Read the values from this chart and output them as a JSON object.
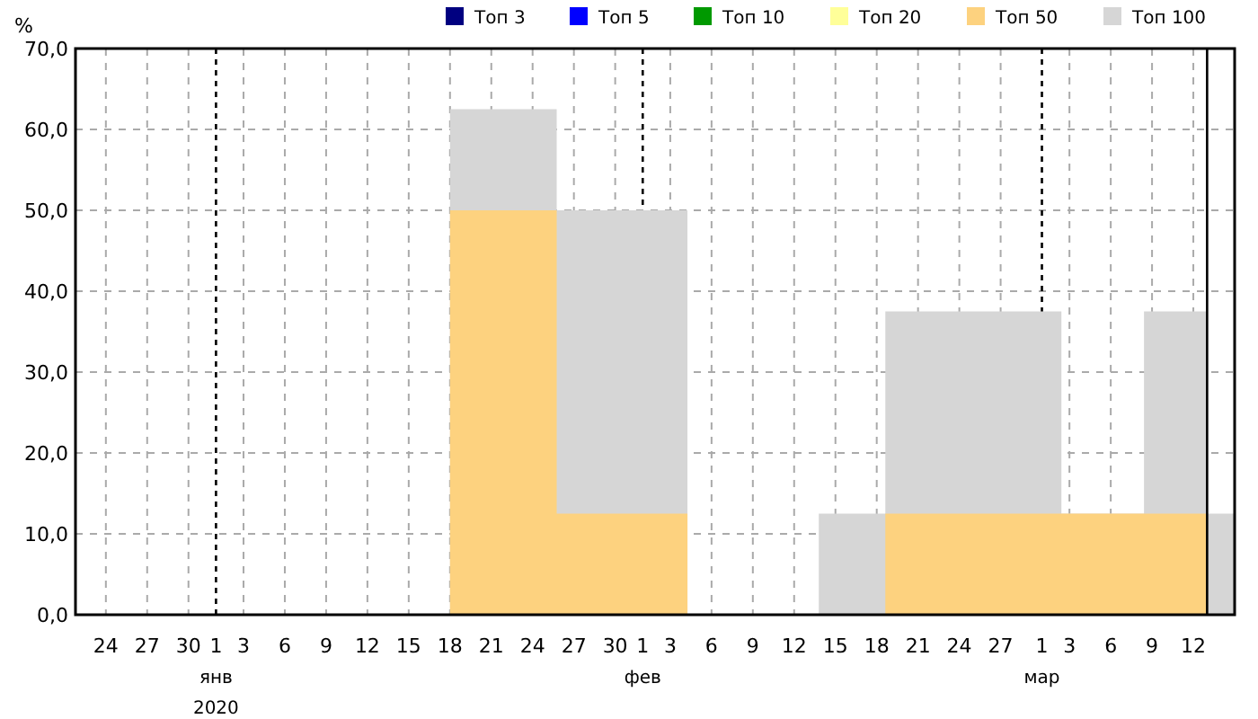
{
  "chart_data": {
    "type": "area",
    "ylabel": "%",
    "legend": "top right",
    "grid": true,
    "x": [
      "2020-01-18",
      "2020-01-25T18:00",
      "2020-02-04T06:00",
      "2020-02-13T19:00",
      "2020-02-18T15:00",
      "2020-03-02T10:00",
      "2020-03-08T10:00",
      "2020-03-13",
      "2020-03-15"
    ],
    "series": [
      {
        "name": "Топ 3",
        "color": "#000080",
        "values": [
          null,
          null,
          null,
          null,
          null,
          null,
          null,
          null,
          null
        ]
      },
      {
        "name": "Топ 5",
        "color": "#0000ff",
        "values": [
          null,
          null,
          null,
          null,
          null,
          null,
          null,
          null,
          null
        ]
      },
      {
        "name": "Топ 10",
        "color": "#009900",
        "values": [
          null,
          null,
          null,
          null,
          null,
          null,
          null,
          null,
          null
        ]
      },
      {
        "name": "Топ 20",
        "color": "#ffff99",
        "values": [
          null,
          null,
          null,
          null,
          null,
          null,
          null,
          null,
          null
        ]
      },
      {
        "name": "Топ 50",
        "color": "#fdd27f",
        "values": [
          50,
          12.5,
          0,
          0,
          12.5,
          12.5,
          12.5,
          0,
          0
        ]
      },
      {
        "name": "Топ 100",
        "color": "#d6d6d6",
        "values": [
          62.5,
          50,
          0,
          12.5,
          37.5,
          12.5,
          37.5,
          12.5,
          12.5
        ]
      }
    ],
    "xlim": [
      "2019-12-21T19:00",
      "2020-03-15"
    ],
    "xticks": [
      {
        "value": "2019-12-24",
        "label": "24"
      },
      {
        "value": "2019-12-27",
        "label": "27"
      },
      {
        "value": "2019-12-30",
        "label": "30"
      },
      {
        "value": "2020-01-01",
        "label": "1\nянв\n2020"
      },
      {
        "value": "2020-01-03",
        "label": "3"
      },
      {
        "value": "2020-01-06",
        "label": "6"
      },
      {
        "value": "2020-01-09",
        "label": "9"
      },
      {
        "value": "2020-01-12",
        "label": "12"
      },
      {
        "value": "2020-01-15",
        "label": "15"
      },
      {
        "value": "2020-01-18",
        "label": "18"
      },
      {
        "value": "2020-01-21",
        "label": "21"
      },
      {
        "value": "2020-01-24",
        "label": "24"
      },
      {
        "value": "2020-01-27",
        "label": "27"
      },
      {
        "value": "2020-01-30",
        "label": "30"
      },
      {
        "value": "2020-02-01",
        "label": "1\nфев"
      },
      {
        "value": "2020-02-03",
        "label": "3"
      },
      {
        "value": "2020-02-06",
        "label": "6"
      },
      {
        "value": "2020-02-09",
        "label": "9"
      },
      {
        "value": "2020-02-12",
        "label": "12"
      },
      {
        "value": "2020-02-15",
        "label": "15"
      },
      {
        "value": "2020-02-18",
        "label": "18"
      },
      {
        "value": "2020-02-21",
        "label": "21"
      },
      {
        "value": "2020-02-24",
        "label": "24"
      },
      {
        "value": "2020-02-27",
        "label": "27"
      },
      {
        "value": "2020-03-01",
        "label": "1\nмар"
      },
      {
        "value": "2020-03-03",
        "label": "3"
      },
      {
        "value": "2020-03-06",
        "label": "6"
      },
      {
        "value": "2020-03-09",
        "label": "9"
      },
      {
        "value": "2020-03-12",
        "label": "12"
      }
    ],
    "ylim": [
      0,
      70
    ],
    "yticks": [
      {
        "value": 0,
        "label": "0,0"
      },
      {
        "value": 10,
        "label": "10,0"
      },
      {
        "value": 20,
        "label": "20,0"
      },
      {
        "value": 30,
        "label": "30,0"
      },
      {
        "value": 40,
        "label": "40,0"
      },
      {
        "value": 50,
        "label": "50,0"
      },
      {
        "value": 60,
        "label": "60,0"
      },
      {
        "value": 70,
        "label": "70,0"
      }
    ],
    "ref_lines": [
      {
        "axis": "x",
        "value": "2020-03-13",
        "label": null,
        "line_style": "solid",
        "color": "#000000"
      }
    ]
  }
}
